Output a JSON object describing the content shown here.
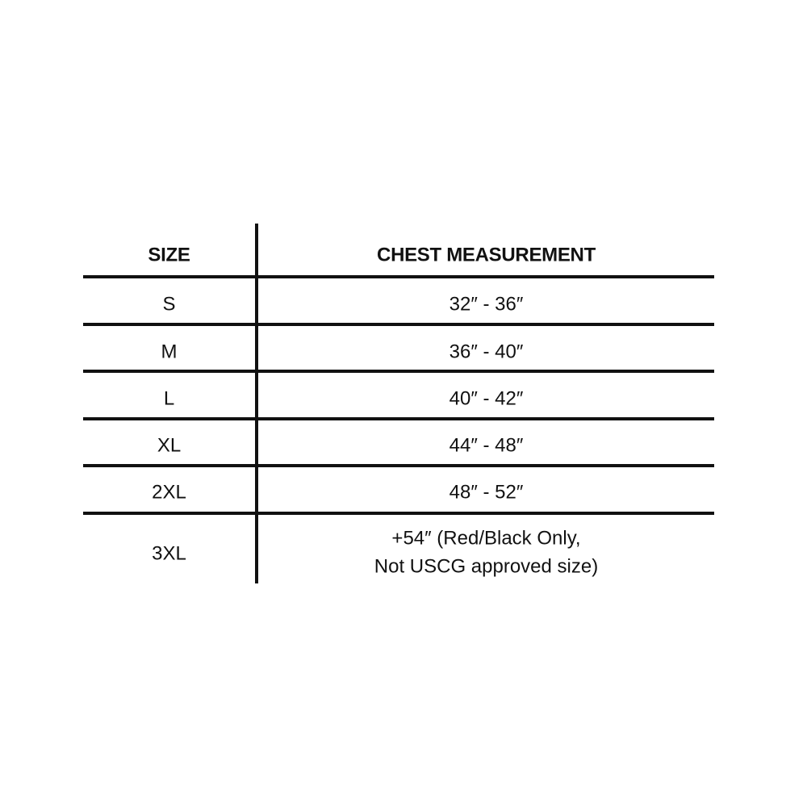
{
  "table": {
    "headers": [
      "SIZE",
      "CHEST MEASUREMENT"
    ],
    "rows": [
      {
        "size": "S",
        "chest": "32″ - 36″"
      },
      {
        "size": "M",
        "chest": "36″ - 40″"
      },
      {
        "size": "L",
        "chest": "40″ - 42″"
      },
      {
        "size": "XL",
        "chest": "44″ - 48″"
      },
      {
        "size": "2XL",
        "chest": "48″ - 52″"
      },
      {
        "size": "3XL",
        "chest": "+54″ (Red/Black Only,",
        "chest_line2": "Not USCG approved size)"
      }
    ]
  }
}
